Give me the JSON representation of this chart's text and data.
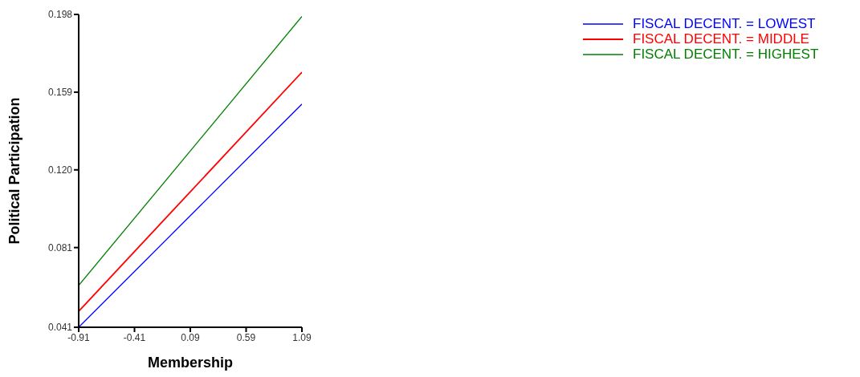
{
  "chart_data": {
    "type": "line",
    "xlabel": "Membership",
    "ylabel": "Political Participation",
    "x": [
      -0.91,
      1.09
    ],
    "series": [
      {
        "name": "FISCAL DECENT. = LOWEST",
        "color": "#0000ff",
        "values": [
          0.041,
          0.153
        ]
      },
      {
        "name": "FISCAL DECENT. = MIDDLE",
        "color": "#ff0000",
        "values": [
          0.049,
          0.169
        ]
      },
      {
        "name": "FISCAL DECENT. = HIGHEST",
        "color": "#008000",
        "values": [
          0.062,
          0.197
        ]
      }
    ],
    "xlim": [
      -0.91,
      1.09
    ],
    "xticks": [
      -0.91,
      -0.41,
      0.09,
      0.59,
      1.09
    ],
    "ylim": [
      0.041,
      0.198
    ],
    "yticks": [
      0.041,
      0.081,
      {
        "value": 0.12,
        "label": "0.120"
      },
      0.159,
      0.198
    ],
    "grid": false,
    "legend": "top right",
    "marker": "none",
    "line_style": "solid"
  }
}
